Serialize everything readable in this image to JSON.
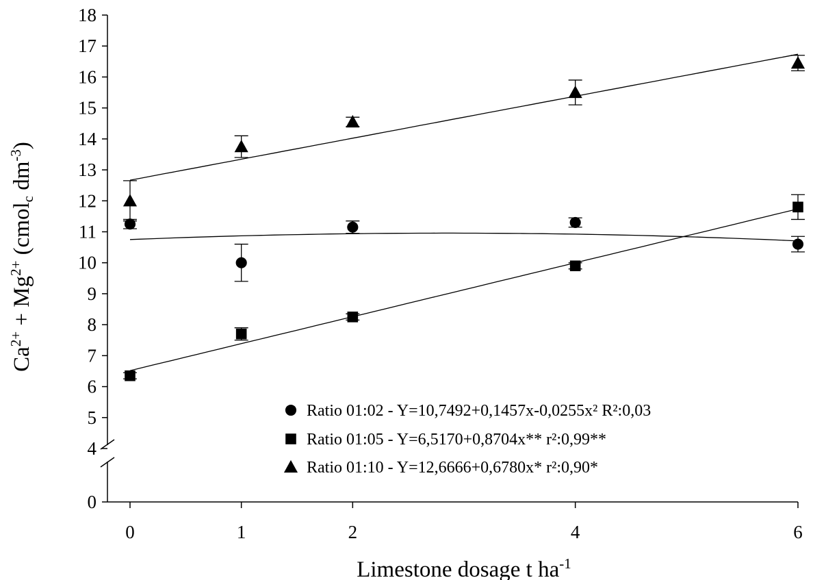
{
  "chart_data": {
    "type": "scatter",
    "x_ticks": [
      0,
      1,
      2,
      4,
      6
    ],
    "y_ticks_upper": [
      4,
      5,
      6,
      7,
      8,
      9,
      10,
      11,
      12,
      13,
      14,
      15,
      16,
      17,
      18
    ],
    "y_ticks_lower": [
      0
    ],
    "y_break": true,
    "xlim": [
      -0.1,
      6.1
    ],
    "ylim_upper": [
      4,
      18
    ],
    "xlabel": {
      "main": "Limestone dosage t ha",
      "sup": "-1"
    },
    "ylabel": {
      "parts": [
        {
          "t": "Ca",
          "s": "n"
        },
        {
          "t": "2+",
          "s": "sup"
        },
        {
          "t": " + Mg",
          "s": "n"
        },
        {
          "t": "2+",
          "s": "sup"
        },
        {
          "t": " (cmol",
          "s": "n"
        },
        {
          "t": "c",
          "s": "sub"
        },
        {
          "t": " dm",
          "s": "n"
        },
        {
          "t": "-3",
          "s": "sup"
        },
        {
          "t": ")",
          "s": "n"
        }
      ]
    },
    "legend_position": "bottom-right",
    "series": [
      {
        "name": "Ratio  01:02 - Y=10,7492+0,1457x-0,0255x² R²:0,03",
        "marker": "circle",
        "x": [
          0,
          1,
          2,
          4,
          6
        ],
        "y": [
          11.25,
          10.0,
          11.15,
          11.3,
          10.6
        ],
        "err": [
          0.15,
          0.6,
          0.2,
          0.15,
          0.25
        ],
        "fit": {
          "type": "quadratic",
          "a": 10.7492,
          "b": 0.1457,
          "c": -0.0255
        }
      },
      {
        "name": "Ratio  01:05 - Y=6,5170+0,8704x** r²:0,99**",
        "marker": "square",
        "x": [
          0,
          1,
          2,
          4,
          6
        ],
        "y": [
          6.35,
          7.7,
          8.25,
          9.9,
          11.8
        ],
        "err": [
          0.1,
          0.2,
          0.1,
          0.1,
          0.4
        ],
        "fit": {
          "type": "linear",
          "a": 6.517,
          "b": 0.8704
        }
      },
      {
        "name": "Ratio  01:10 - Y=12,6666+0,6780x* r²:0,90*",
        "marker": "triangle",
        "x": [
          0,
          1,
          2,
          4,
          6
        ],
        "y": [
          12.0,
          13.75,
          14.55,
          15.5,
          16.45
        ],
        "err": [
          0.65,
          0.35,
          0.15,
          0.4,
          0.25
        ],
        "fit": {
          "type": "linear",
          "a": 12.6666,
          "b": 0.678
        }
      }
    ]
  }
}
